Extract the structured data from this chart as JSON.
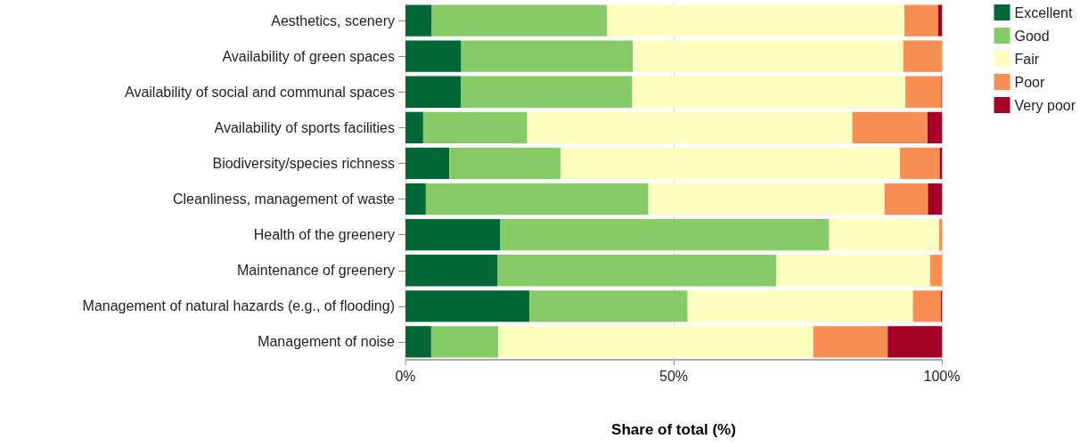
{
  "chart_data": {
    "type": "bar",
    "orientation": "horizontal",
    "stacked": true,
    "xlabel": "Share of total (%)",
    "categories": [
      "Aesthetics, scenery",
      "Availability of green spaces",
      "Availability of social and communal spaces",
      "Availability of sports facilities",
      "Biodiversity/species richness",
      "Cleanliness, management of waste",
      "Health of the greenery",
      "Maintenance of greenery",
      "Management of natural hazards (e.g., of flooding)",
      "Management of noise"
    ],
    "series": [
      {
        "name": "Excellent",
        "color": "#006837",
        "values": [
          4.9,
          10.4,
          10.3,
          3.3,
          8.2,
          3.8,
          17.7,
          17.2,
          23.1,
          4.8
        ]
      },
      {
        "name": "Good",
        "color": "#86cb66",
        "values": [
          32.7,
          32.0,
          32.0,
          19.4,
          20.7,
          41.5,
          61.3,
          51.9,
          29.5,
          12.5
        ]
      },
      {
        "name": "Fair",
        "color": "#ffffbf",
        "values": [
          55.4,
          50.4,
          50.9,
          60.6,
          63.3,
          44.0,
          20.5,
          28.7,
          42.0,
          58.7
        ]
      },
      {
        "name": "Poor",
        "color": "#f98e52",
        "values": [
          6.3,
          7.2,
          6.7,
          14.0,
          7.4,
          8.1,
          0.5,
          2.2,
          5.2,
          13.9
        ]
      },
      {
        "name": "Very poor",
        "color": "#a50026",
        "values": [
          0.7,
          0,
          0.1,
          2.7,
          0.4,
          2.6,
          0,
          0,
          0.2,
          10.1
        ]
      }
    ],
    "xlim": [
      0,
      100
    ],
    "xticks": [
      {
        "value": 0,
        "label": "0%"
      },
      {
        "value": 50,
        "label": "50%"
      },
      {
        "value": 100,
        "label": "100%"
      }
    ],
    "grid": "x",
    "legend": "top right"
  }
}
